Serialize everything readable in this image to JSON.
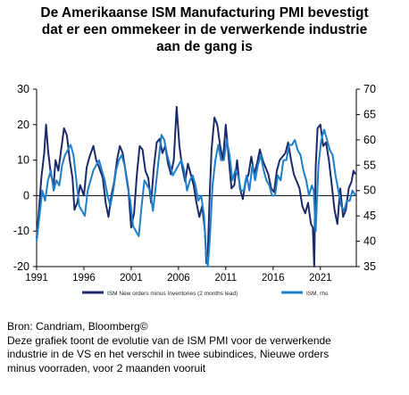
{
  "title_lines": [
    "De Amerikaanse ISM Manufacturing PMI bevestigt",
    "dat er een ommekeer in de verwerkende industrie",
    "aan de gang is"
  ],
  "footer": {
    "source": "Bron: Candriam, Bloomberg©",
    "lines": [
      "Deze grafiek toont de evolutie van de ISM PMI voor de verwerkende",
      "industrie in de VS en het verschil in twee subindices, Nieuwe orders",
      "minus voorraden, voor 2 maanden vooruit"
    ]
  },
  "chart_data": {
    "type": "line",
    "title": "De Amerikaanse ISM Manufacturing PMI bevestigt dat er een ommekeer in de verwerkende industrie aan de gang is",
    "x_ticks": [
      "1991",
      "1996",
      "2001",
      "2006",
      "2011",
      "2016",
      "2021"
    ],
    "x_range": [
      1991,
      2024.8
    ],
    "y_left": {
      "range": [
        -20,
        30
      ],
      "ticks": [
        -20,
        -10,
        0,
        10,
        20,
        30
      ]
    },
    "y_right": {
      "range": [
        35,
        70
      ],
      "ticks": [
        35,
        40,
        45,
        50,
        55,
        60,
        65,
        70
      ]
    },
    "legend_position": "bottom",
    "grid": false,
    "series": [
      {
        "name": "ISM New orders minus Inventories (2 months lead)",
        "axis": "left",
        "color": "#1b2a6b",
        "x": [
          1991.0,
          1991.2,
          1991.5,
          1991.8,
          1992.0,
          1992.2,
          1992.5,
          1992.8,
          1993.0,
          1993.3,
          1993.6,
          1993.9,
          1994.2,
          1994.5,
          1994.8,
          1995.0,
          1995.3,
          1995.6,
          1996.0,
          1996.3,
          1996.6,
          1997.0,
          1997.3,
          1997.6,
          1998.0,
          1998.3,
          1998.6,
          1998.9,
          1999.2,
          1999.5,
          1999.8,
          2000.1,
          2000.4,
          2000.7,
          2001.0,
          2001.3,
          2001.6,
          2001.9,
          2002.2,
          2002.5,
          2002.8,
          2003.1,
          2003.4,
          2003.7,
          2004.0,
          2004.3,
          2004.6,
          2004.9,
          2005.2,
          2005.5,
          2005.8,
          2006.1,
          2006.4,
          2006.7,
          2007.0,
          2007.3,
          2007.6,
          2007.9,
          2008.2,
          2008.5,
          2008.8,
          2008.95,
          2009.1,
          2009.3,
          2009.5,
          2009.8,
          2010.1,
          2010.4,
          2010.7,
          2011.0,
          2011.3,
          2011.6,
          2011.9,
          2012.2,
          2012.5,
          2012.8,
          2013.1,
          2013.4,
          2013.7,
          2014.0,
          2014.3,
          2014.6,
          2014.9,
          2015.2,
          2015.5,
          2015.8,
          2016.1,
          2016.4,
          2016.7,
          2017.0,
          2017.3,
          2017.6,
          2017.9,
          2018.2,
          2018.5,
          2018.8,
          2019.1,
          2019.4,
          2019.7,
          2020.0,
          2020.2,
          2020.35,
          2020.5,
          2020.7,
          2021.0,
          2021.3,
          2021.6,
          2021.9,
          2022.2,
          2022.5,
          2022.8,
          2023.1,
          2023.4,
          2023.7,
          2024.0,
          2024.3,
          2024.5,
          2024.7
        ],
        "values": [
          -12,
          -6,
          5,
          12,
          20,
          13,
          6,
          3,
          10,
          7,
          13,
          19,
          17,
          10,
          5,
          -4,
          -2,
          3,
          0,
          8,
          11,
          14,
          10,
          8,
          5,
          -2,
          -6,
          0,
          4,
          10,
          14,
          12,
          7,
          2,
          -9,
          -5,
          6,
          14,
          13,
          7,
          5,
          -2,
          8,
          15,
          16,
          12,
          14,
          9,
          6,
          10,
          25,
          14,
          8,
          4,
          9,
          6,
          3,
          -2,
          -6,
          -3,
          -10,
          -19,
          -16,
          0,
          13,
          22,
          20,
          14,
          10,
          20,
          11,
          2,
          3,
          10,
          2,
          -1,
          4,
          6,
          11,
          6,
          9,
          13,
          10,
          8,
          6,
          2,
          1,
          7,
          10,
          11,
          12,
          15,
          10,
          6,
          4,
          2,
          -3,
          -5,
          -2,
          -8,
          -9,
          -20,
          8,
          19,
          20,
          14,
          15,
          10,
          3,
          -4,
          -8,
          2,
          -6,
          -4,
          2,
          4,
          7,
          6
        ]
      },
      {
        "name": "ISM, rhs",
        "axis": "right",
        "color": "#1e7ec8",
        "x": [
          1991.0,
          1991.3,
          1991.6,
          1991.9,
          1992.2,
          1992.5,
          1992.8,
          1993.1,
          1993.4,
          1993.7,
          1994.0,
          1994.3,
          1994.6,
          1994.9,
          1995.2,
          1995.5,
          1995.8,
          1996.1,
          1996.4,
          1996.7,
          1997.0,
          1997.3,
          1997.6,
          1997.9,
          1998.2,
          1998.5,
          1998.8,
          1999.1,
          1999.4,
          1999.7,
          2000.0,
          2000.3,
          2000.6,
          2000.9,
          2001.2,
          2001.5,
          2001.8,
          2002.1,
          2002.4,
          2002.7,
          2003.0,
          2003.3,
          2003.6,
          2003.9,
          2004.2,
          2004.5,
          2004.8,
          2005.1,
          2005.4,
          2005.7,
          2006.0,
          2006.3,
          2006.6,
          2006.9,
          2007.2,
          2007.5,
          2007.8,
          2008.1,
          2008.4,
          2008.7,
          2008.9,
          2009.1,
          2009.3,
          2009.6,
          2009.9,
          2010.2,
          2010.5,
          2010.8,
          2011.1,
          2011.4,
          2011.7,
          2012.0,
          2012.3,
          2012.6,
          2012.9,
          2013.2,
          2013.5,
          2013.8,
          2014.1,
          2014.4,
          2014.7,
          2015.0,
          2015.3,
          2015.6,
          2015.9,
          2016.2,
          2016.5,
          2016.8,
          2017.1,
          2017.4,
          2017.7,
          2018.0,
          2018.3,
          2018.6,
          2018.9,
          2019.2,
          2019.5,
          2019.8,
          2020.1,
          2020.3,
          2020.5,
          2020.8,
          2021.1,
          2021.4,
          2021.7,
          2022.0,
          2022.3,
          2022.6,
          2022.9,
          2023.2,
          2023.5,
          2023.8,
          2024.1,
          2024.4,
          2024.7
        ],
        "values": [
          40,
          45,
          50,
          48,
          52,
          54,
          50,
          52,
          51,
          55,
          57,
          58,
          59,
          57,
          52,
          47,
          46,
          45,
          50,
          52,
          54,
          55,
          56,
          54,
          52,
          49,
          47,
          50,
          54,
          56,
          57,
          55,
          51,
          48,
          43,
          42,
          41,
          47,
          52,
          51,
          50,
          46,
          51,
          56,
          61,
          60,
          57,
          55,
          53,
          54,
          55,
          56,
          54,
          50,
          52,
          53,
          51,
          48,
          49,
          45,
          38,
          35,
          40,
          51,
          56,
          59,
          56,
          56,
          60,
          57,
          52,
          54,
          53,
          50,
          50,
          53,
          50,
          55,
          52,
          55,
          57,
          54,
          52,
          51,
          49,
          49,
          53,
          52,
          56,
          56,
          59,
          59,
          60,
          58,
          57,
          54,
          52,
          49,
          51,
          50,
          42,
          55,
          60,
          62,
          60,
          58,
          57,
          53,
          50,
          47,
          46,
          48,
          48,
          50,
          49
        ]
      }
    ]
  }
}
